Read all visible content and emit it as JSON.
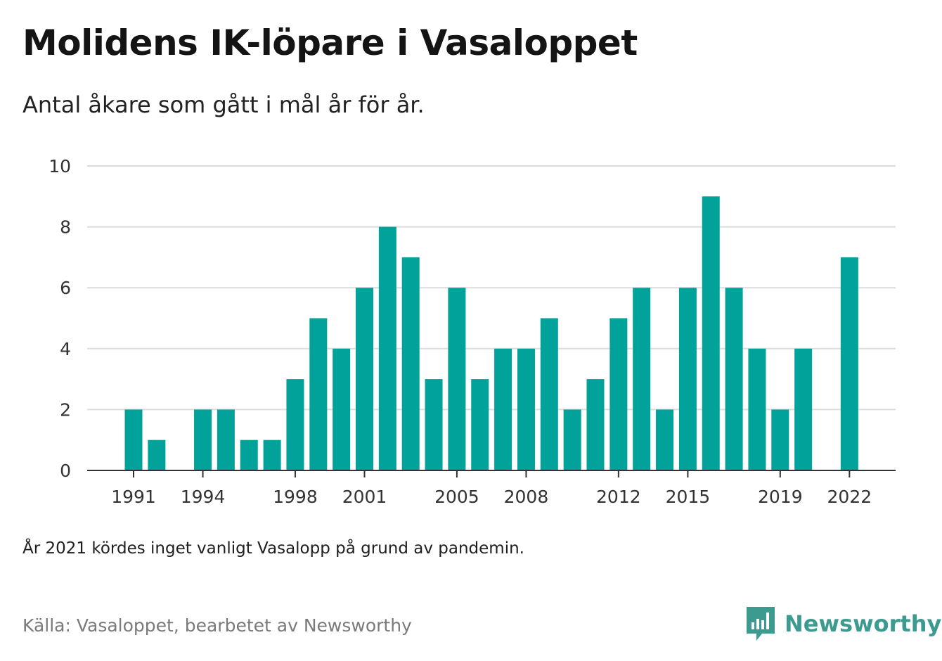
{
  "title": "Molidens IK-löpare i Vasaloppet",
  "subtitle": "Antal åkare som gått i mål år för år.",
  "note": "År 2021 kördes inget vanligt Vasalopp på grund av pandemin.",
  "source": "Källa: Vasaloppet, bearbetet av Newsworthy",
  "brand": {
    "name": "Newsworthy",
    "icon": "newsworthy-logo-icon",
    "color": "#3c9a8f"
  },
  "chart_data": {
    "type": "bar",
    "title": "Molidens IK-löpare i Vasaloppet",
    "subtitle": "Antal åkare som gått i mål år för år.",
    "xlabel": "",
    "ylabel": "",
    "ylim": [
      0,
      10
    ],
    "y_ticks": [
      0,
      2,
      4,
      6,
      8,
      10
    ],
    "x_tick_labels": [
      "1991",
      "1994",
      "1998",
      "2001",
      "2005",
      "2008",
      "2012",
      "2015",
      "2019",
      "2022"
    ],
    "bar_color": "#00a29a",
    "grid": true,
    "legend": "none",
    "categories": [
      "1991",
      "1992",
      "1993",
      "1994",
      "1995",
      "1996",
      "1997",
      "1998",
      "1999",
      "2000",
      "2001",
      "2002",
      "2003",
      "2004",
      "2005",
      "2006",
      "2007",
      "2008",
      "2009",
      "2010",
      "2011",
      "2012",
      "2013",
      "2014",
      "2015",
      "2016",
      "2017",
      "2018",
      "2019",
      "2020",
      "2021",
      "2022"
    ],
    "values": [
      2,
      1,
      0,
      2,
      2,
      1,
      1,
      3,
      5,
      4,
      6,
      8,
      7,
      3,
      6,
      3,
      4,
      4,
      5,
      2,
      3,
      5,
      6,
      2,
      6,
      9,
      6,
      4,
      2,
      4,
      0,
      7
    ]
  }
}
